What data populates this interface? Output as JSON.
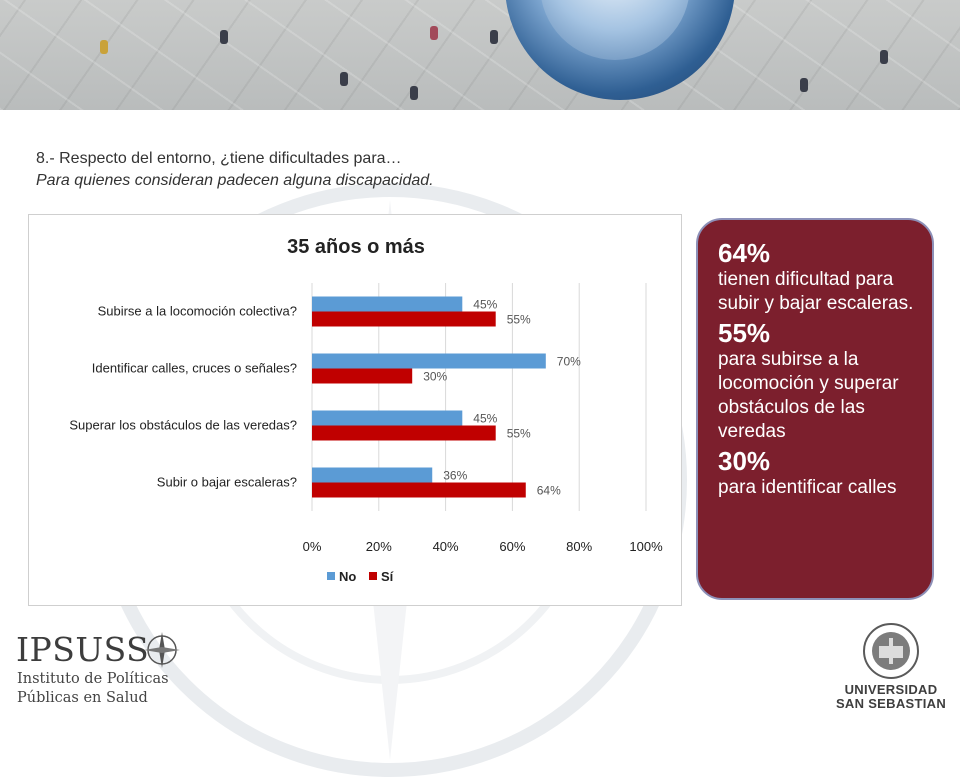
{
  "question": {
    "title": "8.- Respecto del entorno, ¿tiene dificultades para…",
    "subtitle": "Para quienes consideran padecen alguna discapacidad."
  },
  "colors": {
    "no": "#5b9bd5",
    "si": "#c00000",
    "callout_bg": "#7c1f2d",
    "callout_border": "#8d90b8"
  },
  "chart_data": {
    "type": "bar",
    "orientation": "horizontal",
    "title": "35 años o más",
    "categories": [
      "Subirse a la locomoción colectiva?",
      "Identificar calles, cruces o señales?",
      "Superar los obstáculos de las veredas?",
      "Subir o bajar escaleras?"
    ],
    "series": [
      {
        "name": "No",
        "values": [
          45,
          70,
          45,
          36
        ],
        "labels": [
          "45%",
          "70%",
          "45%",
          "36%"
        ]
      },
      {
        "name": "Sí",
        "values": [
          55,
          30,
          55,
          64
        ],
        "labels": [
          "55%",
          "30%",
          "55%",
          "64%"
        ]
      }
    ],
    "xlim": [
      0,
      100
    ],
    "xticks": [
      "0%",
      "20%",
      "40%",
      "60%",
      "80%",
      "100%"
    ],
    "grid": true,
    "legend_position": "bottom"
  },
  "callout": {
    "items": [
      {
        "value": "64%",
        "text": "tienen dificultad para subir y bajar escaleras."
      },
      {
        "value": "55%",
        "text": "para subirse a la locomoción y superar obstáculos de las veredas"
      },
      {
        "value": "30%",
        "text": "para identificar calles"
      }
    ]
  },
  "logos": {
    "ipsuss_name": "IPSUSS",
    "ipsuss_line1": "Instituto de Políticas",
    "ipsuss_line2": "Públicas en Salud",
    "uss_line1": "UNIVERSIDAD",
    "uss_line2": "SAN SEBASTIAN"
  }
}
